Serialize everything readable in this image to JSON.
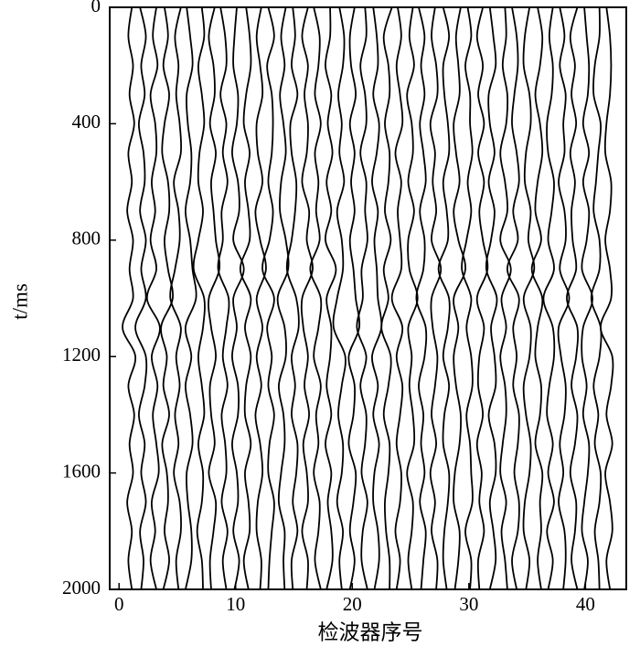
{
  "chart_data": {
    "type": "wiggle",
    "xlabel": "检波器序号",
    "ylabel": "t/ms",
    "xlim": [
      -0.8,
      43.5
    ],
    "ylim": [
      0,
      2000
    ],
    "y_inverted": true,
    "xticks": [
      0,
      10,
      20,
      30,
      40
    ],
    "yticks": [
      0,
      400,
      800,
      1200,
      1600,
      2000
    ],
    "t": [
      0,
      100,
      200,
      300,
      400,
      500,
      600,
      700,
      800,
      900,
      1000,
      1100,
      1200,
      1300,
      1400,
      1500,
      1600,
      1700,
      1800,
      1900,
      2000
    ],
    "x": [
      1,
      2,
      3,
      4,
      5,
      6,
      7,
      8,
      9,
      10,
      11,
      12,
      13,
      14,
      15,
      16,
      17,
      18,
      19,
      20,
      21,
      22,
      23,
      24,
      25,
      26,
      27,
      28,
      29,
      30,
      31,
      32,
      33,
      34,
      35,
      36,
      37,
      38,
      39,
      40,
      41,
      42
    ],
    "traces": [
      [
        0.1,
        -0.2,
        0.2,
        -0.1,
        0.3,
        -0.2,
        0.1,
        -0.3,
        0.2,
        -0.1,
        0.2,
        -0.7,
        0.4,
        -0.2,
        0.3,
        -0.1,
        0.2,
        -0.3,
        0.1,
        -0.2,
        0.1
      ],
      [
        -0.2,
        0.3,
        -0.1,
        0.2,
        -0.3,
        0.1,
        0.2,
        -0.2,
        0.3,
        -0.1,
        0.3,
        -0.6,
        0.3,
        0.2,
        -0.3,
        0.2,
        -0.1,
        0.3,
        -0.2,
        0.1,
        -0.1
      ],
      [
        0.2,
        -0.1,
        0.3,
        -0.3,
        0.1,
        0.2,
        -0.2,
        0.1,
        -0.3,
        0.2,
        -0.6,
        0.5,
        -0.2,
        0.3,
        -0.1,
        0.2,
        0.4,
        -0.2,
        0.1,
        -0.3,
        0.2
      ],
      [
        -0.1,
        0.2,
        -0.2,
        0.3,
        -0.1,
        -0.3,
        0.2,
        0.3,
        -0.1,
        0.2,
        0.6,
        -0.4,
        0.1,
        -0.2,
        0.3,
        -0.3,
        0.1,
        0.2,
        -0.1,
        0.3,
        -0.2
      ],
      [
        0.3,
        -0.2,
        0.1,
        -0.1,
        0.2,
        0.3,
        -0.3,
        0.1,
        0.2,
        -0.2,
        -0.6,
        0.3,
        -0.1,
        0.2,
        -0.2,
        0.1,
        -0.3,
        0.2,
        0.3,
        -0.1,
        0.1
      ],
      [
        -0.2,
        0.1,
        0.3,
        -0.2,
        -0.1,
        0.2,
        0.1,
        -0.3,
        0.1,
        0.3,
        0.6,
        -0.3,
        0.2,
        -0.3,
        0.1,
        0.3,
        -0.2,
        -0.1,
        0.2,
        0.2,
        -0.3
      ],
      [
        0.1,
        0.3,
        -0.2,
        0.1,
        0.3,
        -0.1,
        -0.2,
        0.2,
        -0.2,
        -0.6,
        0.3,
        0.2,
        -0.2,
        0.1,
        0.3,
        -0.2,
        0.2,
        0.1,
        -0.3,
        0.1,
        0.2
      ],
      [
        0.2,
        -0.3,
        0.1,
        0.2,
        -0.2,
        0.3,
        -0.1,
        0.1,
        0.3,
        0.6,
        -0.3,
        -0.1,
        0.3,
        -0.2,
        -0.1,
        0.2,
        -0.3,
        0.3,
        0.1,
        -0.2,
        -0.1
      ],
      [
        -0.3,
        0.1,
        0.2,
        -0.3,
        0.2,
        -0.1,
        0.3,
        -0.2,
        -0.1,
        -0.5,
        0.4,
        0.2,
        -0.1,
        0.3,
        -0.2,
        0.1,
        0.2,
        -0.2,
        0.3,
        -0.1,
        0.2
      ],
      [
        0.1,
        -0.1,
        -0.2,
        0.2,
        0.1,
        -0.3,
        0.2,
        0.3,
        -0.2,
        0.7,
        -0.2,
        0.1,
        -0.3,
        0.2,
        0.2,
        -0.3,
        0.1,
        0.2,
        -0.2,
        0.3,
        -0.1
      ],
      [
        -0.1,
        0.2,
        0.3,
        -0.1,
        -0.3,
        0.2,
        -0.2,
        0.1,
        0.2,
        -0.6,
        0.3,
        -0.2,
        0.3,
        -0.1,
        -0.2,
        0.3,
        -0.2,
        0.1,
        0.2,
        -0.3,
        0.1
      ],
      [
        0.2,
        -0.2,
        0.1,
        0.3,
        -0.2,
        -0.1,
        0.3,
        -0.3,
        0.1,
        0.6,
        -0.2,
        0.3,
        -0.2,
        0.2,
        -0.3,
        0.1,
        0.3,
        -0.1,
        -0.2,
        0.2,
        0.1
      ],
      [
        -0.2,
        0.3,
        -0.3,
        0.1,
        0.2,
        0.1,
        -0.2,
        0.2,
        -0.1,
        -0.7,
        0.3,
        -0.3,
        0.1,
        -0.2,
        0.3,
        -0.1,
        -0.2,
        0.3,
        0.1,
        -0.1,
        -0.2
      ],
      [
        0.3,
        -0.1,
        0.2,
        -0.2,
        0.1,
        0.3,
        -0.1,
        -0.2,
        0.3,
        0.5,
        -0.4,
        0.2,
        0.3,
        -0.3,
        0.1,
        0.2,
        -0.1,
        -0.3,
        0.2,
        0.1,
        0.2
      ],
      [
        -0.1,
        0.1,
        -0.2,
        0.3,
        -0.3,
        -0.2,
        0.2,
        0.1,
        -0.2,
        -0.6,
        0.2,
        0.4,
        -0.2,
        0.1,
        -0.2,
        0.3,
        0.2,
        -0.1,
        0.3,
        -0.2,
        -0.1
      ],
      [
        0.2,
        -0.3,
        0.2,
        -0.1,
        0.2,
        0.1,
        -0.3,
        0.3,
        0.1,
        0.6,
        -0.3,
        -0.2,
        0.2,
        -0.1,
        0.3,
        -0.2,
        0.1,
        0.2,
        -0.3,
        0.2,
        0.1
      ],
      [
        -0.3,
        0.2,
        0.1,
        -0.2,
        0.3,
        -0.2,
        0.1,
        -0.1,
        0.2,
        -0.6,
        0.3,
        0.1,
        -0.3,
        0.3,
        -0.1,
        0.1,
        -0.3,
        0.2,
        0.1,
        -0.2,
        0.3
      ],
      [
        0.1,
        0.1,
        -0.3,
        0.2,
        -0.1,
        0.3,
        -0.2,
        0.2,
        -0.3,
        0.6,
        -0.2,
        0.2,
        0.1,
        -0.2,
        0.2,
        -0.3,
        0.2,
        -0.1,
        0.2,
        0.3,
        -0.2
      ],
      [
        -0.1,
        0.3,
        0.2,
        -0.2,
        0.1,
        -0.1,
        0.3,
        -0.3,
        0.1,
        0.2,
        -0.3,
        -0.6,
        0.4,
        0.1,
        -0.2,
        0.2,
        0.1,
        -0.3,
        0.2,
        -0.1,
        0.1
      ],
      [
        0.2,
        -0.2,
        -0.1,
        0.3,
        -0.2,
        0.2,
        -0.1,
        0.2,
        -0.2,
        0.1,
        0.3,
        0.6,
        -0.3,
        0.2,
        0.1,
        -0.3,
        0.3,
        0.1,
        -0.2,
        0.2,
        -0.2
      ],
      [
        0.1,
        0.2,
        -0.3,
        0.1,
        0.2,
        -0.3,
        0.2,
        0.1,
        0.3,
        -0.2,
        -0.1,
        -0.6,
        0.2,
        -0.3,
        0.2,
        0.1,
        -0.2,
        0.3,
        -0.1,
        -0.2,
        0.3
      ],
      [
        -0.2,
        0.1,
        0.2,
        -0.2,
        0.3,
        0.1,
        -0.3,
        0.2,
        -0.1,
        0.1,
        0.2,
        0.5,
        -0.3,
        0.2,
        -0.2,
        0.3,
        -0.1,
        -0.2,
        0.2,
        0.3,
        -0.1
      ],
      [
        0.4,
        -0.3,
        0.1,
        0.2,
        -0.2,
        0.2,
        0.1,
        -0.2,
        0.3,
        -0.3,
        0.1,
        -0.5,
        0.3,
        0.1,
        -0.3,
        0.2,
        0.1,
        -0.2,
        -0.1,
        0.2,
        0.2
      ],
      [
        -0.1,
        0.2,
        -0.2,
        0.1,
        0.3,
        -0.3,
        0.2,
        -0.1,
        0.1,
        0.2,
        -0.6,
        0.3,
        -0.2,
        0.3,
        0.1,
        -0.2,
        0.2,
        0.1,
        -0.3,
        0.1,
        -0.2
      ],
      [
        0.2,
        -0.1,
        0.3,
        -0.3,
        0.1,
        0.2,
        -0.2,
        0.3,
        -0.2,
        -0.1,
        0.6,
        -0.2,
        0.1,
        -0.1,
        0.2,
        0.3,
        -0.3,
        0.2,
        0.1,
        -0.2,
        0.1
      ],
      [
        -0.3,
        0.2,
        -0.1,
        0.2,
        -0.2,
        0.1,
        0.3,
        -0.2,
        0.2,
        0.1,
        -0.5,
        0.3,
        0.2,
        -0.3,
        0.1,
        -0.1,
        0.2,
        -0.2,
        0.3,
        0.1,
        -0.1
      ],
      [
        0.1,
        -0.2,
        0.2,
        0.3,
        -0.3,
        0.1,
        -0.1,
        0.2,
        -0.2,
        0.6,
        -0.2,
        -0.1,
        0.3,
        0.1,
        -0.2,
        0.2,
        -0.3,
        0.1,
        -0.2,
        0.3,
        0.2
      ],
      [
        -0.2,
        0.3,
        -0.2,
        -0.1,
        0.2,
        0.3,
        -0.2,
        0.1,
        0.2,
        -0.6,
        0.3,
        0.2,
        -0.2,
        0.3,
        -0.1,
        -0.2,
        0.3,
        0.2,
        -0.1,
        -0.2,
        0.1
      ],
      [
        0.3,
        -0.1,
        0.1,
        0.2,
        -0.3,
        -0.1,
        0.2,
        -0.3,
        0.1,
        0.7,
        -0.3,
        0.1,
        -0.3,
        -0.1,
        0.3,
        0.2,
        -0.2,
        -0.3,
        0.2,
        0.1,
        -0.2
      ],
      [
        -0.1,
        0.2,
        -0.3,
        0.1,
        0.1,
        0.3,
        -0.1,
        0.2,
        -0.2,
        -0.6,
        0.2,
        -0.2,
        0.2,
        0.3,
        -0.2,
        0.1,
        0.2,
        0.3,
        -0.3,
        0.2,
        0.1
      ],
      [
        0.2,
        -0.3,
        0.2,
        -0.2,
        0.3,
        -0.2,
        0.3,
        -0.1,
        0.2,
        0.6,
        -0.3,
        0.3,
        -0.1,
        -0.2,
        0.2,
        -0.3,
        0.1,
        -0.1,
        0.3,
        -0.2,
        -0.1
      ],
      [
        -0.2,
        0.1,
        0.3,
        -0.3,
        -0.2,
        0.2,
        -0.3,
        0.2,
        -0.1,
        -0.5,
        0.4,
        -0.1,
        0.2,
        0.3,
        -0.3,
        0.2,
        0.3,
        -0.2,
        0.1,
        0.3,
        -0.2
      ],
      [
        0.1,
        0.2,
        -0.1,
        0.3,
        0.2,
        -0.3,
        0.1,
        0.3,
        -0.3,
        0.6,
        -0.2,
        0.2,
        -0.3,
        0.1,
        0.2,
        -0.1,
        -0.3,
        0.2,
        -0.2,
        0.1,
        0.3
      ],
      [
        -0.3,
        0.1,
        0.2,
        -0.1,
        -0.3,
        0.1,
        0.3,
        -0.2,
        0.2,
        -0.7,
        0.3,
        -0.2,
        0.1,
        -0.2,
        0.3,
        0.2,
        -0.1,
        0.3,
        0.2,
        -0.3,
        0.1
      ],
      [
        0.2,
        -0.2,
        -0.3,
        0.2,
        0.3,
        -0.1,
        -0.2,
        0.3,
        0.1,
        0.6,
        -0.3,
        0.3,
        0.2,
        -0.3,
        -0.1,
        0.3,
        0.2,
        -0.2,
        -0.3,
        0.2,
        -0.1
      ],
      [
        -0.1,
        0.3,
        0.1,
        -0.3,
        0.1,
        0.3,
        -0.1,
        -0.3,
        0.2,
        -0.6,
        0.3,
        -0.1,
        -0.3,
        0.2,
        0.1,
        -0.3,
        0.3,
        0.1,
        0.2,
        -0.1,
        0.2
      ],
      [
        0.2,
        -0.1,
        0.2,
        0.1,
        -0.3,
        -0.2,
        0.3,
        0.1,
        -0.2,
        0.3,
        -0.6,
        0.2,
        0.3,
        -0.1,
        -0.3,
        0.2,
        -0.2,
        0.3,
        -0.3,
        0.2,
        -0.2
      ],
      [
        -0.2,
        0.2,
        -0.2,
        0.3,
        0.1,
        0.2,
        -0.3,
        0.2,
        0.3,
        -0.2,
        0.6,
        -0.3,
        -0.1,
        0.3,
        0.2,
        -0.2,
        0.1,
        -0.3,
        0.2,
        0.3,
        0.1
      ],
      [
        0.3,
        -0.3,
        0.1,
        -0.2,
        0.2,
        -0.3,
        0.1,
        -0.2,
        -0.1,
        0.2,
        -0.6,
        0.3,
        0.2,
        -0.2,
        0.3,
        0.1,
        -0.3,
        0.2,
        0.1,
        -0.2,
        0.3
      ],
      [
        -0.1,
        0.1,
        0.3,
        0.2,
        -0.2,
        0.3,
        -0.2,
        0.3,
        0.1,
        -0.3,
        0.6,
        -0.2,
        -0.3,
        0.1,
        -0.2,
        0.3,
        0.2,
        -0.1,
        -0.3,
        0.2,
        -0.1
      ],
      [
        0.2,
        0.2,
        -0.2,
        -0.3,
        0.3,
        0.1,
        -0.1,
        -0.3,
        0.2,
        0.2,
        -0.5,
        0.3,
        0.2,
        -0.3,
        0.1,
        -0.2,
        0.3,
        0.2,
        -0.2,
        0.1,
        0.2
      ],
      [
        -0.2,
        0.1,
        0.2,
        0.1,
        -0.2,
        -0.3,
        0.2,
        0.1,
        -0.3,
        0.1,
        0.2,
        -0.7,
        0.3,
        0.2,
        -0.2,
        0.3,
        -0.3,
        0.1,
        0.3,
        -0.2,
        0.1
      ]
    ]
  }
}
